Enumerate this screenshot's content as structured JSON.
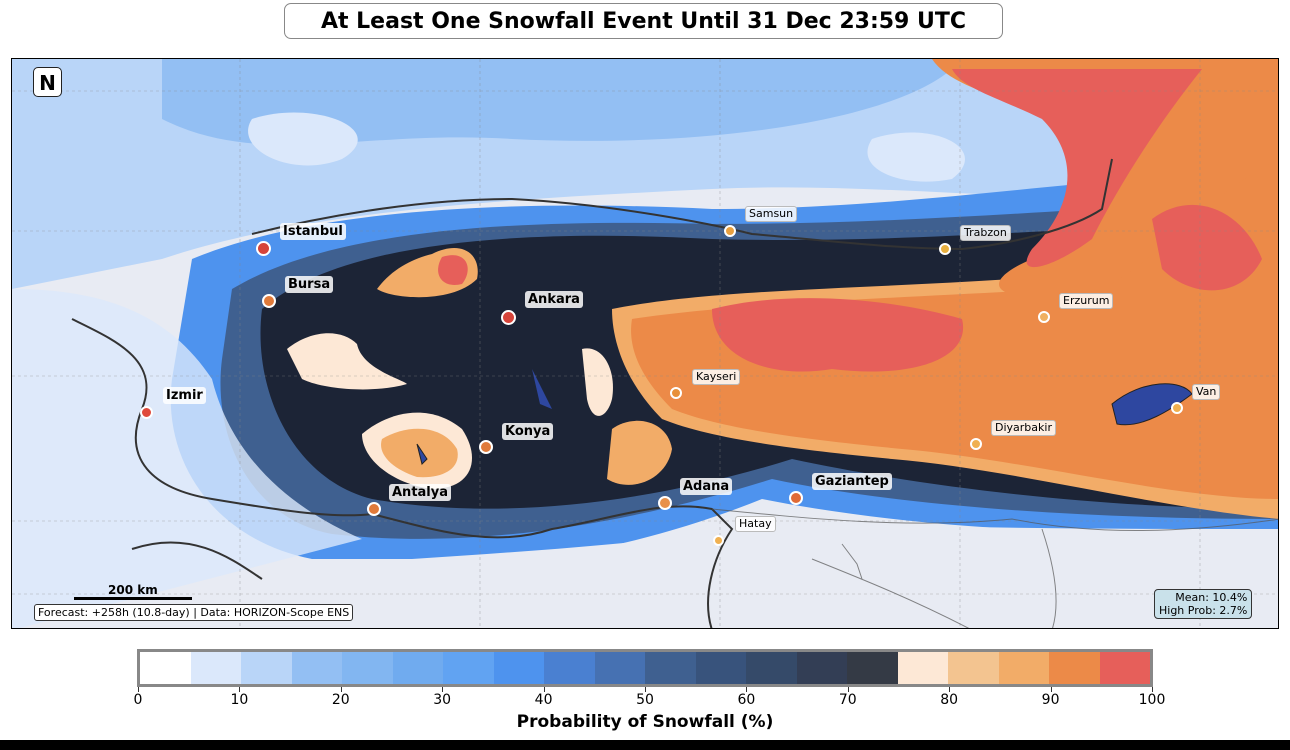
{
  "title": "At Least One Snowfall Event Until 31 Dec 23:59 UTC",
  "map": {
    "north_label": "N",
    "scale_label": "200 km",
    "footer": "Forecast: +258h (10.8-day) | Data: HORIZON-Scope ENS",
    "stats": {
      "mean": "Mean: 10.4%",
      "high_prob": "High Prob: 2.7%"
    },
    "cities": [
      {
        "name": "Istanbul",
        "type": "major",
        "color": "#d6443a"
      },
      {
        "name": "Bursa",
        "type": "major",
        "color": "#e07a3a"
      },
      {
        "name": "Ankara",
        "type": "major",
        "color": "#d6443a"
      },
      {
        "name": "Izmir",
        "type": "major",
        "color": "#e04a3c"
      },
      {
        "name": "Konya",
        "type": "major",
        "color": "#e07a3a"
      },
      {
        "name": "Antalya",
        "type": "major",
        "color": "#e07a3a"
      },
      {
        "name": "Adana",
        "type": "major",
        "color": "#e8904a"
      },
      {
        "name": "Gaziantep",
        "type": "major",
        "color": "#e06a36"
      },
      {
        "name": "Samsun",
        "type": "minor",
        "color": "#e8a040"
      },
      {
        "name": "Trabzon",
        "type": "minor",
        "color": "#e8b040"
      },
      {
        "name": "Erzurum",
        "type": "minor",
        "color": "#f0b060"
      },
      {
        "name": "Kayseri",
        "type": "minor",
        "color": "#e8903a"
      },
      {
        "name": "Diyarbakir",
        "type": "minor",
        "color": "#f0b050"
      },
      {
        "name": "Van",
        "type": "minor",
        "color": "#f0b050"
      },
      {
        "name": "Hatay",
        "type": "minor",
        "color": "#f0b050"
      }
    ]
  },
  "colorbar": {
    "label": "Probability of Snowfall (%)",
    "range": [
      0,
      100
    ],
    "step": 5,
    "ticks": [
      "0",
      "10",
      "20",
      "30",
      "40",
      "50",
      "60",
      "70",
      "80",
      "90",
      "100"
    ],
    "colors": [
      "#ffffff",
      "#dbe8fb",
      "#b9d5f8",
      "#93bff3",
      "#82b6f1",
      "#70abef",
      "#61a3f2",
      "#4e93ee",
      "#4a80d1",
      "#4671b2",
      "#3f6090",
      "#38537c",
      "#354a69",
      "#333e55",
      "#343a45",
      "#fde8d6",
      "#f3c490",
      "#f2ac68",
      "#ec8a48",
      "#e65f5a"
    ]
  }
}
